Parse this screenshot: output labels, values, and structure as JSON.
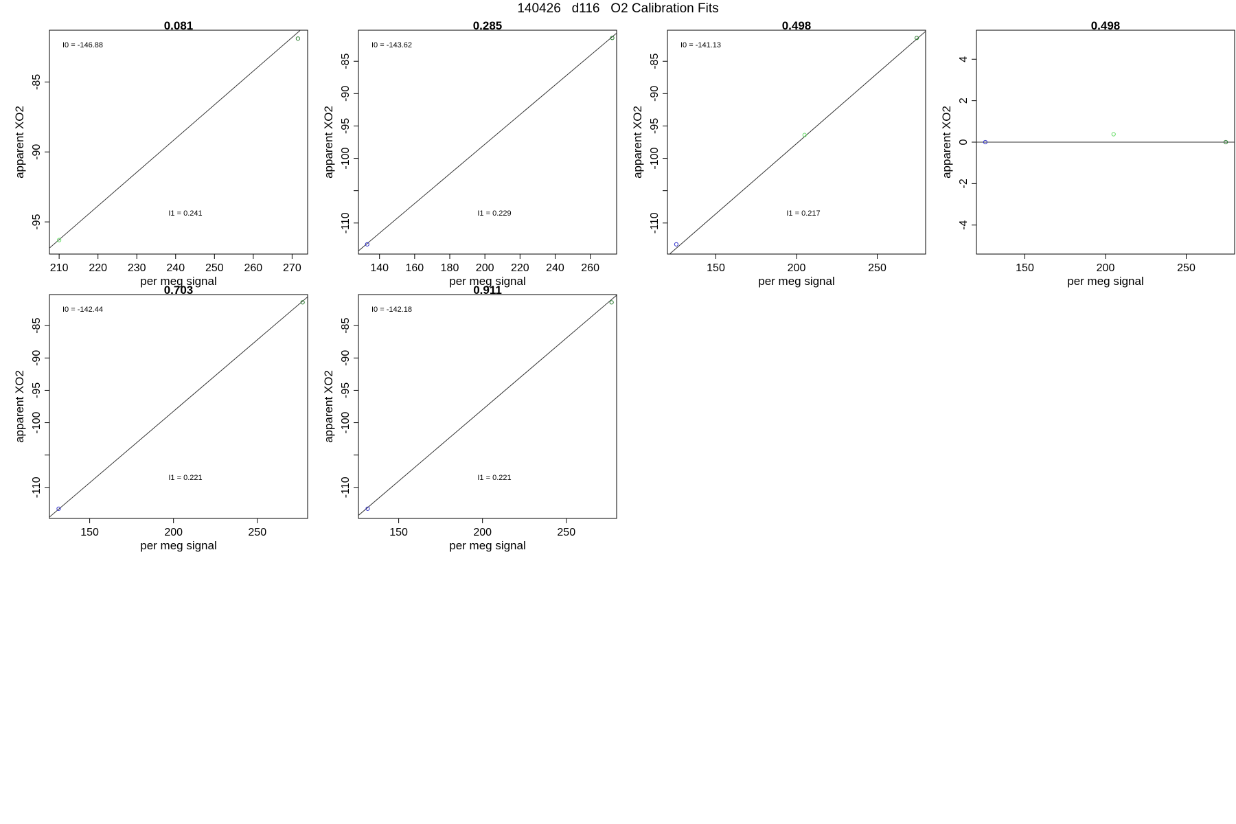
{
  "title": "140426   d116   O2 Calibration Fits",
  "colors": {
    "axes": "#000000",
    "fit_line": "#333333",
    "point_blue": "#3333cc",
    "point_darkgreen": "#2e7d32",
    "point_lightgreen": "#66dd66"
  },
  "chart_data": [
    {
      "type": "scatter",
      "title": "0.081",
      "xlabel": "per meg signal",
      "ylabel": "apparent XO2",
      "xlim": [
        207.5,
        274
      ],
      "ylim": [
        -97.3,
        -81.3
      ],
      "xticks": [
        210,
        220,
        230,
        240,
        250,
        260,
        270
      ],
      "yticks": [
        -85,
        -90,
        -95
      ],
      "grid": false,
      "annotations": {
        "i0": "I0 =  -146.88",
        "i1": "I1 =  0.241"
      },
      "fit_line": {
        "x": [
          207.5,
          274
        ],
        "y": [
          -96.87,
          -80.85
        ]
      },
      "points": [
        {
          "x": 210,
          "y": -96.3,
          "color": "point_lightgreen"
        },
        {
          "x": 271.5,
          "y": -81.9,
          "color": "point_darkgreen"
        }
      ]
    },
    {
      "type": "scatter",
      "title": "0.285",
      "xlabel": "per meg signal",
      "ylabel": "apparent XO2",
      "xlim": [
        128,
        275
      ],
      "ylim": [
        -114.8,
        -80.2
      ],
      "xticks": [
        140,
        160,
        180,
        200,
        220,
        240,
        260
      ],
      "yticks": [
        -85,
        -90,
        -95,
        -100,
        -105,
        -110
      ],
      "ytick_labels": [
        "-85",
        "-90",
        "-95",
        "-100",
        "",
        "-110"
      ],
      "grid": false,
      "annotations": {
        "i0": "I0 =  -143.62",
        "i1": "I1 =  0.229"
      },
      "fit_line": {
        "x": [
          128,
          275
        ],
        "y": [
          -114.31,
          -80.65
        ]
      },
      "points": [
        {
          "x": 133,
          "y": -113.3,
          "color": "point_blue"
        },
        {
          "x": 272.5,
          "y": -81.4,
          "color": "point_darkgreen"
        }
      ]
    },
    {
      "type": "scatter",
      "title": "0.498",
      "xlabel": "per meg signal",
      "ylabel": "apparent XO2",
      "xlim": [
        120,
        280
      ],
      "ylim": [
        -114.8,
        -80.2
      ],
      "xticks": [
        150,
        200,
        250
      ],
      "yticks": [
        -85,
        -90,
        -95,
        -100,
        -105,
        -110
      ],
      "ytick_labels": [
        "-85",
        "-90",
        "-95",
        "-100",
        "",
        "-110"
      ],
      "grid": false,
      "annotations": {
        "i0": "I0 =  -141.13",
        "i1": "I1 =  0.217"
      },
      "fit_line": {
        "x": [
          120,
          280
        ],
        "y": [
          -115.09,
          -80.37
        ]
      },
      "points": [
        {
          "x": 125.5,
          "y": -113.3,
          "color": "point_blue"
        },
        {
          "x": 205,
          "y": -96.4,
          "color": "point_lightgreen"
        },
        {
          "x": 274.5,
          "y": -81.4,
          "color": "point_darkgreen"
        }
      ]
    },
    {
      "type": "scatter",
      "title": "0.498",
      "xlabel": "per meg signal",
      "ylabel": "apparent XO2",
      "xlim": [
        120,
        280
      ],
      "ylim": [
        -5.4,
        5.4
      ],
      "xticks": [
        150,
        200,
        250
      ],
      "yticks": [
        4,
        2,
        0,
        -2,
        -4
      ],
      "grid": false,
      "annotations": {},
      "fit_line": {
        "x": [
          120,
          280
        ],
        "y": [
          0,
          0
        ]
      },
      "points": [
        {
          "x": 125.5,
          "y": 0,
          "color": "point_blue"
        },
        {
          "x": 205,
          "y": 0.38,
          "color": "point_lightgreen"
        },
        {
          "x": 274.5,
          "y": 0,
          "color": "point_darkgreen"
        }
      ]
    },
    {
      "type": "scatter",
      "title": "0.703",
      "xlabel": "per meg signal",
      "ylabel": "apparent XO2",
      "xlim": [
        126,
        280
      ],
      "ylim": [
        -114.8,
        -80.2
      ],
      "xticks": [
        150,
        200,
        250
      ],
      "yticks": [
        -85,
        -90,
        -95,
        -100,
        -105,
        -110
      ],
      "ytick_labels": [
        "-85",
        "-90",
        "-95",
        "-100",
        "",
        "-110"
      ],
      "grid": false,
      "annotations": {
        "i0": "I0 =  -142.44",
        "i1": "I1 =  0.221"
      },
      "fit_line": {
        "x": [
          126,
          280
        ],
        "y": [
          -114.59,
          -80.56
        ]
      },
      "points": [
        {
          "x": 131.5,
          "y": -113.3,
          "color": "point_blue"
        },
        {
          "x": 277,
          "y": -81.4,
          "color": "point_darkgreen"
        }
      ]
    },
    {
      "type": "scatter",
      "title": "0.911",
      "xlabel": "per meg signal",
      "ylabel": "apparent XO2",
      "xlim": [
        126,
        280
      ],
      "ylim": [
        -114.8,
        -80.2
      ],
      "xticks": [
        150,
        200,
        250
      ],
      "yticks": [
        -85,
        -90,
        -95,
        -100,
        -105,
        -110
      ],
      "ytick_labels": [
        "-85",
        "-90",
        "-95",
        "-100",
        "",
        "-110"
      ],
      "grid": false,
      "annotations": {
        "i0": "I0 =  -142.18",
        "i1": "I1 =  0.221"
      },
      "fit_line": {
        "x": [
          126,
          280
        ],
        "y": [
          -114.33,
          -80.3
        ]
      },
      "points": [
        {
          "x": 131.5,
          "y": -113.3,
          "color": "point_blue"
        },
        {
          "x": 277,
          "y": -81.4,
          "color": "point_darkgreen"
        }
      ]
    }
  ]
}
